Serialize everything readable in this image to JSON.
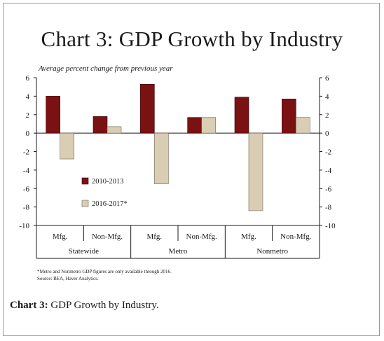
{
  "title": "Chart 3: GDP Growth by Industry",
  "subtitle": "Average percent change from previous year",
  "footnote_lines": [
    "*Metro and Nonmetro GDP figures are only available through 2016.",
    "Source: BEA, Haver Analytics."
  ],
  "caption": {
    "label": "Chart 3:",
    "text": " GDP Growth by Industry."
  },
  "colors": {
    "series_2010_2013": "#7a1213",
    "series_2016_2017": "#d9cdb4"
  },
  "chart_data": {
    "type": "bar",
    "title": "Chart 3: GDP Growth by Industry",
    "ylabel": "Average percent change from previous year",
    "ylim": [
      -10,
      6
    ],
    "yticks": [
      6,
      4,
      2,
      0,
      -2,
      -4,
      -6,
      -8,
      -10
    ],
    "grid": false,
    "legend": "lower-left inside",
    "groups": [
      "Statewide",
      "Metro",
      "Nonmetro"
    ],
    "categories": [
      "Mfg.",
      "Non-Mfg.",
      "Mfg.",
      "Non-Mfg.",
      "Mfg.",
      "Non-Mfg."
    ],
    "series": [
      {
        "name": "2010-2013",
        "values": [
          4.0,
          1.8,
          5.3,
          1.7,
          3.9,
          3.7
        ]
      },
      {
        "name": "2016-2017*",
        "values": [
          -2.8,
          0.7,
          -5.5,
          1.7,
          -8.4,
          1.7
        ]
      }
    ]
  }
}
